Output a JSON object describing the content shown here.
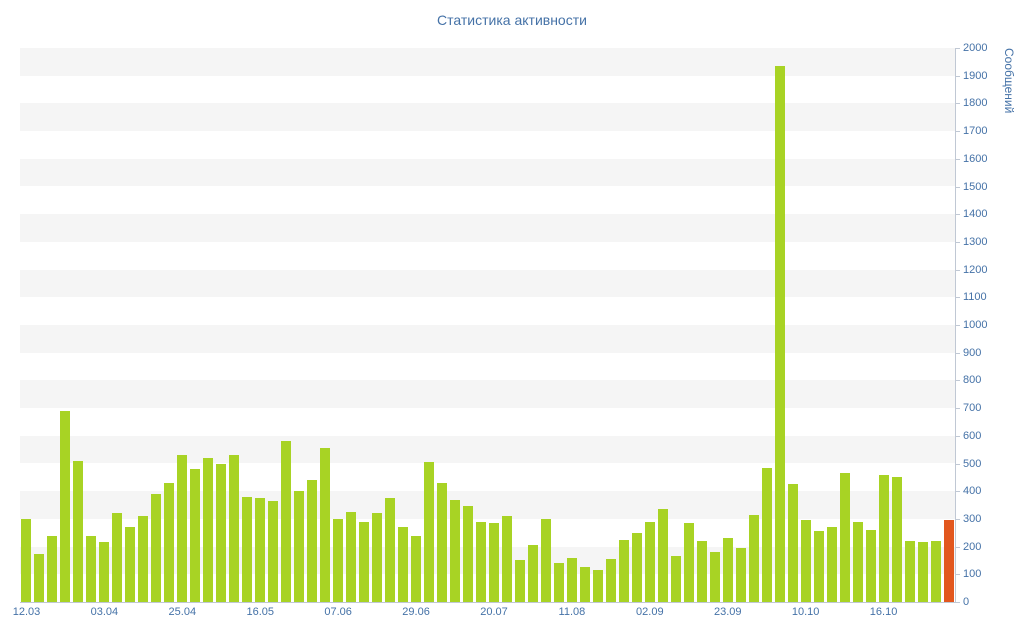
{
  "chart_data": {
    "type": "bar",
    "title": "Статистика активности",
    "y_axis_title": "Сообщений",
    "ylim": [
      0,
      2000
    ],
    "y_tick_step": 100,
    "grid": "alternating horizontal bands every 100 units",
    "legend": "none",
    "bar_color": "#a8d324",
    "last_bar_color": "#e2571e",
    "band_color": "#f5f5f5",
    "label_color": "#4572a7",
    "x_labels": [
      {
        "label": "12.03",
        "index": 0
      },
      {
        "label": "03.04",
        "index": 6
      },
      {
        "label": "25.04",
        "index": 12
      },
      {
        "label": "16.05",
        "index": 18
      },
      {
        "label": "07.06",
        "index": 24
      },
      {
        "label": "29.06",
        "index": 30
      },
      {
        "label": "20.07",
        "index": 36
      },
      {
        "label": "11.08",
        "index": 42
      },
      {
        "label": "02.09",
        "index": 48
      },
      {
        "label": "23.09",
        "index": 54
      },
      {
        "label": "10.10",
        "index": 60
      },
      {
        "label": "16.10",
        "index": 66
      }
    ],
    "values": [
      300,
      175,
      240,
      690,
      510,
      240,
      215,
      320,
      270,
      310,
      390,
      430,
      530,
      480,
      520,
      500,
      530,
      380,
      375,
      365,
      580,
      400,
      440,
      555,
      300,
      325,
      290,
      320,
      375,
      270,
      240,
      505,
      430,
      370,
      345,
      290,
      285,
      310,
      150,
      205,
      300,
      140,
      160,
      125,
      115,
      155,
      225,
      250,
      290,
      335,
      165,
      285,
      220,
      180,
      230,
      195,
      315,
      485,
      1935,
      425,
      295,
      255,
      270,
      465,
      290,
      260,
      460,
      450,
      220,
      215,
      220,
      295
    ]
  }
}
